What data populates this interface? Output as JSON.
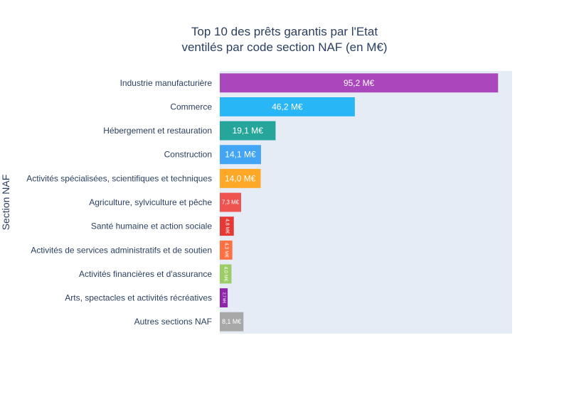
{
  "chart_data": {
    "type": "bar",
    "orientation": "horizontal",
    "title_lines": [
      "Top 10 des prêts garantis par l'Etat",
      "ventilés par code section NAF (en M€)"
    ],
    "ylabel": "Section NAF",
    "xlabel": "",
    "xlim": [
      0,
      100
    ],
    "grid": false,
    "categories": [
      "Industrie manufacturière",
      "Commerce",
      "Hébergement et restauration",
      "Construction",
      "Activités spécialisées, scientifiques et techniques",
      "Agriculture, sylviculture et pêche",
      "Santé humaine et action sociale",
      "Activités de services administratifs et de soutien",
      "Activités financières et d'assurance",
      "Arts, spectacles et activités récréatives",
      "Autres sections NAF"
    ],
    "values": [
      95.2,
      46.2,
      19.1,
      14.1,
      14.0,
      7.3,
      4.8,
      4.3,
      4.0,
      2.7,
      8.1
    ],
    "labels": [
      "95,2 M€",
      "46,2 M€",
      "19,1 M€",
      "14,1 M€",
      "14,0 M€",
      "7,3 M€",
      "4,8 M€",
      "4,3 M€",
      "4,0 M€",
      "2,7 M€",
      "8,1 M€"
    ],
    "colors": [
      "#AB47BC",
      "#29B6F6",
      "#26A69A",
      "#42A5F5",
      "#FFA726",
      "#EF5350",
      "#E53935",
      "#FF7043",
      "#9CCC65",
      "#8E24AA",
      "#A8A8A8"
    ]
  }
}
